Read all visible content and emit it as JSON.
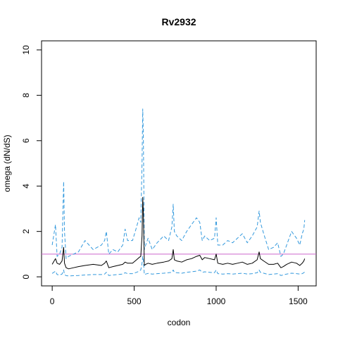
{
  "chart_data": {
    "type": "line",
    "title": "Rv2932",
    "xlabel": "codon",
    "ylabel": "omega (dN/dS)",
    "xlim": [
      -65,
      1610
    ],
    "ylim": [
      -0.4,
      10.4
    ],
    "x_ticks": [
      0,
      500,
      1000,
      1500
    ],
    "y_ticks": [
      0,
      2,
      4,
      6,
      8,
      10
    ],
    "grid": false,
    "reference_line": {
      "y": 1,
      "color": "#cc66cc"
    },
    "colors": {
      "mean": "#000000",
      "upper": "#3399dd",
      "lower": "#3399dd"
    },
    "series": [
      {
        "key": "upper",
        "style": "dashed",
        "x": [
          0,
          20,
          30,
          45,
          60,
          70,
          75,
          85,
          100,
          130,
          160,
          200,
          250,
          300,
          320,
          330,
          345,
          370,
          400,
          430,
          445,
          460,
          490,
          515,
          530,
          540,
          548,
          552,
          556,
          562,
          570,
          585,
          610,
          640,
          680,
          710,
          730,
          738,
          745,
          760,
          790,
          820,
          850,
          880,
          900,
          915,
          930,
          960,
          990,
          1000,
          1010,
          1040,
          1070,
          1100,
          1130,
          1160,
          1190,
          1220,
          1250,
          1262,
          1270,
          1290,
          1320,
          1350,
          1375,
          1395,
          1410,
          1430,
          1460,
          1490,
          1510,
          1525,
          1535,
          1540
        ],
        "y": [
          1.4,
          2.3,
          0.9,
          1.0,
          1.3,
          4.2,
          2.0,
          0.8,
          0.9,
          1.0,
          1.1,
          1.6,
          1.2,
          1.4,
          1.6,
          2.0,
          1.0,
          1.2,
          1.1,
          1.4,
          2.1,
          1.6,
          1.6,
          2.2,
          2.6,
          2.4,
          5.0,
          7.4,
          6.2,
          1.2,
          1.4,
          1.7,
          1.2,
          1.5,
          1.8,
          1.6,
          2.2,
          3.2,
          2.0,
          1.8,
          1.6,
          2.0,
          2.3,
          2.6,
          2.4,
          1.6,
          1.8,
          1.6,
          1.7,
          2.6,
          1.4,
          1.4,
          1.6,
          1.5,
          1.7,
          1.9,
          1.5,
          1.8,
          2.2,
          2.9,
          2.4,
          1.9,
          1.2,
          1.3,
          1.5,
          0.9,
          1.0,
          1.4,
          2.0,
          1.7,
          1.4,
          1.9,
          2.1,
          2.5
        ]
      },
      {
        "key": "mean",
        "style": "solid",
        "x": [
          0,
          20,
          30,
          45,
          60,
          70,
          75,
          85,
          100,
          130,
          160,
          200,
          250,
          300,
          320,
          330,
          345,
          370,
          400,
          430,
          445,
          460,
          490,
          515,
          530,
          540,
          548,
          552,
          556,
          562,
          570,
          585,
          610,
          640,
          680,
          710,
          730,
          738,
          745,
          760,
          790,
          820,
          850,
          880,
          900,
          915,
          930,
          960,
          990,
          1000,
          1010,
          1040,
          1070,
          1100,
          1130,
          1160,
          1190,
          1220,
          1250,
          1262,
          1270,
          1290,
          1320,
          1350,
          1375,
          1395,
          1410,
          1430,
          1460,
          1490,
          1510,
          1525,
          1535,
          1540
        ],
        "y": [
          0.55,
          0.8,
          0.6,
          0.55,
          0.7,
          1.3,
          0.6,
          0.4,
          0.35,
          0.4,
          0.45,
          0.5,
          0.55,
          0.5,
          0.6,
          0.7,
          0.4,
          0.45,
          0.5,
          0.55,
          0.65,
          0.6,
          0.6,
          0.75,
          0.85,
          0.9,
          1.8,
          3.5,
          2.8,
          0.5,
          0.55,
          0.6,
          0.55,
          0.6,
          0.65,
          0.7,
          0.8,
          1.2,
          0.75,
          0.7,
          0.65,
          0.75,
          0.8,
          0.9,
          0.95,
          0.75,
          0.85,
          0.8,
          0.75,
          1.0,
          0.6,
          0.55,
          0.6,
          0.55,
          0.6,
          0.65,
          0.55,
          0.6,
          0.75,
          1.1,
          0.8,
          0.7,
          0.55,
          0.55,
          0.6,
          0.4,
          0.45,
          0.55,
          0.65,
          0.6,
          0.5,
          0.6,
          0.7,
          0.8
        ]
      },
      {
        "key": "lower",
        "style": "dashed",
        "x": [
          0,
          20,
          30,
          45,
          60,
          70,
          75,
          85,
          100,
          130,
          160,
          200,
          250,
          300,
          320,
          330,
          345,
          370,
          400,
          430,
          445,
          460,
          490,
          515,
          530,
          540,
          548,
          552,
          556,
          562,
          570,
          585,
          610,
          640,
          680,
          710,
          730,
          738,
          745,
          760,
          790,
          820,
          850,
          880,
          900,
          915,
          930,
          960,
          990,
          1000,
          1010,
          1040,
          1070,
          1100,
          1130,
          1160,
          1190,
          1220,
          1250,
          1262,
          1270,
          1290,
          1320,
          1350,
          1375,
          1395,
          1410,
          1430,
          1460,
          1490,
          1510,
          1525,
          1535,
          1540
        ],
        "y": [
          0.15,
          0.25,
          0.1,
          0.08,
          0.12,
          0.3,
          0.1,
          0.05,
          0.04,
          0.05,
          0.06,
          0.08,
          0.1,
          0.1,
          0.12,
          0.2,
          0.06,
          0.08,
          0.1,
          0.12,
          0.18,
          0.14,
          0.14,
          0.2,
          0.25,
          0.3,
          0.6,
          0.9,
          0.7,
          0.1,
          0.12,
          0.15,
          0.12,
          0.14,
          0.16,
          0.18,
          0.2,
          0.3,
          0.2,
          0.18,
          0.16,
          0.2,
          0.22,
          0.25,
          0.3,
          0.2,
          0.22,
          0.2,
          0.18,
          0.3,
          0.14,
          0.12,
          0.14,
          0.12,
          0.14,
          0.16,
          0.12,
          0.14,
          0.18,
          0.3,
          0.2,
          0.16,
          0.1,
          0.12,
          0.14,
          0.06,
          0.08,
          0.12,
          0.16,
          0.14,
          0.12,
          0.14,
          0.18,
          0.22
        ]
      }
    ]
  }
}
